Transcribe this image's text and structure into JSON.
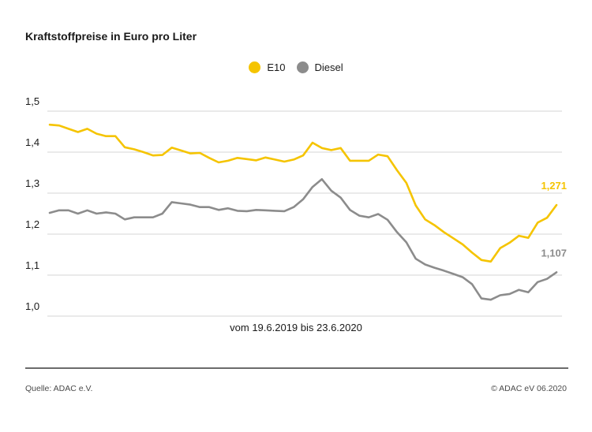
{
  "title": "Kraftstoffpreise in Euro pro Liter",
  "subtitle": "vom 19.6.2019 bis 23.6.2020",
  "footer": {
    "source": "Quelle: ADAC e.V.",
    "copyright": "© ADAC eV 06.2020"
  },
  "colors": {
    "e10": "#f5c400",
    "diesel": "#8c8c8c",
    "grid": "#d4d4d4"
  },
  "chart_data": {
    "type": "line",
    "title": "Kraftstoffpreise in Euro pro Liter",
    "xlabel": "vom 19.6.2019 bis 23.6.2020",
    "ylabel": "",
    "ylim": [
      1.0,
      1.5
    ],
    "yticks": [
      "1,0",
      "1,1",
      "1,2",
      "1,3",
      "1,4",
      "1,5"
    ],
    "ytick_values": [
      1.0,
      1.1,
      1.2,
      1.3,
      1.4,
      1.5
    ],
    "grid": true,
    "legend_position": "top-center",
    "series": [
      {
        "name": "E10",
        "end_label": "1,271",
        "values": [
          1.467,
          1.465,
          1.457,
          1.449,
          1.457,
          1.445,
          1.439,
          1.439,
          1.412,
          1.407,
          1.4,
          1.392,
          1.393,
          1.411,
          1.404,
          1.397,
          1.398,
          1.386,
          1.375,
          1.379,
          1.386,
          1.383,
          1.38,
          1.387,
          1.382,
          1.377,
          1.382,
          1.392,
          1.423,
          1.41,
          1.405,
          1.41,
          1.379,
          1.379,
          1.379,
          1.394,
          1.39,
          1.356,
          1.325,
          1.27,
          1.236,
          1.222,
          1.205,
          1.19,
          1.175,
          1.155,
          1.137,
          1.133,
          1.166,
          1.179,
          1.196,
          1.191,
          1.228,
          1.24,
          1.271
        ]
      },
      {
        "name": "Diesel",
        "end_label": "1,107",
        "values": [
          1.252,
          1.258,
          1.258,
          1.25,
          1.258,
          1.25,
          1.253,
          1.25,
          1.236,
          1.241,
          1.241,
          1.241,
          1.25,
          1.278,
          1.275,
          1.272,
          1.266,
          1.266,
          1.259,
          1.263,
          1.257,
          1.256,
          1.259,
          1.258,
          1.257,
          1.256,
          1.266,
          1.285,
          1.315,
          1.334,
          1.306,
          1.289,
          1.259,
          1.245,
          1.241,
          1.249,
          1.235,
          1.205,
          1.18,
          1.14,
          1.126,
          1.118,
          1.111,
          1.103,
          1.095,
          1.078,
          1.043,
          1.04,
          1.051,
          1.054,
          1.064,
          1.058,
          1.083,
          1.091,
          1.107
        ]
      }
    ]
  }
}
